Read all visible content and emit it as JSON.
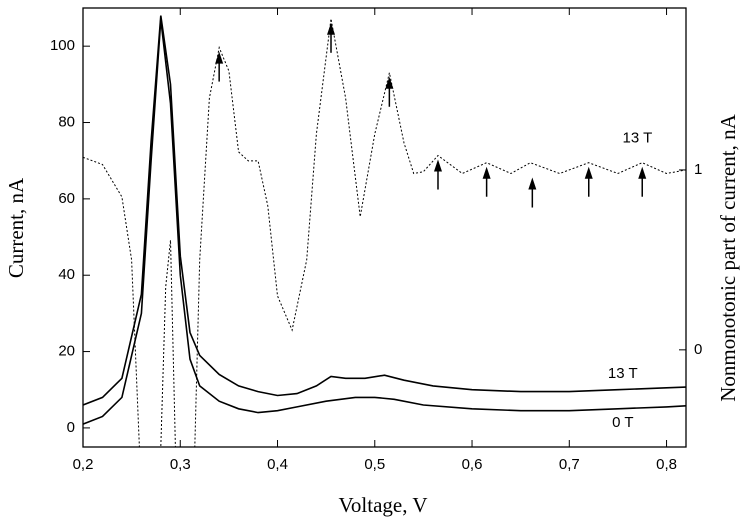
{
  "chart_data": {
    "type": "line",
    "xlabel": "Voltage, V",
    "ylabel": "Current, nA",
    "y2label": "Nonmonotonic part of current, nA",
    "xlim": [
      0.2,
      0.82
    ],
    "xticks": [
      {
        "value": 0.2,
        "label": "0,2"
      },
      {
        "value": 0.3,
        "label": "0,3"
      },
      {
        "value": 0.4,
        "label": "0,4"
      },
      {
        "value": 0.5,
        "label": "0,5"
      },
      {
        "value": 0.6,
        "label": "0,6"
      },
      {
        "value": 0.7,
        "label": "0,7"
      },
      {
        "value": 0.8,
        "label": "0,8"
      }
    ],
    "ylim": [
      -5,
      110
    ],
    "yticks": [
      0,
      20,
      40,
      60,
      80,
      100
    ],
    "y2lim": [
      -0.54,
      1.9
    ],
    "y2ticks": [
      0,
      1
    ],
    "series": [
      {
        "name": "13 T",
        "color": "#000000",
        "dash": "solid",
        "x": [
          0.2,
          0.22,
          0.24,
          0.26,
          0.27,
          0.28,
          0.29,
          0.3,
          0.31,
          0.32,
          0.34,
          0.36,
          0.38,
          0.4,
          0.42,
          0.44,
          0.455,
          0.47,
          0.49,
          0.51,
          0.53,
          0.56,
          0.6,
          0.65,
          0.7,
          0.75,
          0.8,
          0.82
        ],
        "values": [
          6,
          8,
          13,
          35,
          75,
          108,
          90,
          45,
          25,
          19,
          14,
          11,
          9.5,
          8.5,
          9,
          11,
          13.5,
          13,
          13,
          13.8,
          12.5,
          11,
          10,
          9.5,
          9.5,
          10,
          10.5,
          10.7
        ]
      },
      {
        "name": "0 T",
        "color": "#000000",
        "dash": "solid",
        "x": [
          0.2,
          0.22,
          0.24,
          0.26,
          0.27,
          0.28,
          0.29,
          0.3,
          0.31,
          0.32,
          0.34,
          0.36,
          0.38,
          0.4,
          0.42,
          0.45,
          0.48,
          0.5,
          0.52,
          0.55,
          0.6,
          0.65,
          0.7,
          0.75,
          0.8,
          0.82
        ],
        "values": [
          1,
          3,
          8,
          30,
          70,
          107,
          85,
          40,
          18,
          11,
          7,
          5,
          4,
          4.5,
          5.5,
          7,
          8,
          8,
          7.5,
          6,
          5,
          4.5,
          4.5,
          5,
          5.5,
          5.8
        ]
      },
      {
        "name": "13 T",
        "color": "#000000",
        "dash": "dotted",
        "axis": "y2",
        "x": [
          0.2,
          0.22,
          0.24,
          0.25,
          0.258,
          0.28,
          0.285,
          0.29,
          0.295,
          0.315,
          0.32,
          0.33,
          0.34,
          0.35,
          0.36,
          0.37,
          0.38,
          0.39,
          0.4,
          0.415,
          0.43,
          0.44,
          0.455,
          0.47,
          0.485,
          0.5,
          0.515,
          0.53,
          0.54,
          0.55,
          0.565,
          0.59,
          0.615,
          0.64,
          0.66,
          0.69,
          0.72,
          0.75,
          0.775,
          0.8,
          0.82
        ],
        "values": [
          1.07,
          1.03,
          0.85,
          0.5,
          -0.54,
          -0.54,
          0.35,
          0.61,
          -0.54,
          -0.54,
          0.5,
          1.4,
          1.68,
          1.55,
          1.1,
          1.05,
          1.05,
          0.8,
          0.3,
          0.11,
          0.5,
          1.2,
          1.84,
          1.4,
          0.74,
          1.2,
          1.54,
          1.15,
          0.98,
          0.99,
          1.08,
          0.98,
          1.04,
          0.98,
          1.04,
          0.98,
          1.04,
          0.98,
          1.04,
          0.98,
          1.0
        ]
      }
    ],
    "peak_markers": [
      0.34,
      0.455,
      0.515,
      0.565,
      0.615,
      0.662,
      0.72,
      0.775
    ]
  }
}
